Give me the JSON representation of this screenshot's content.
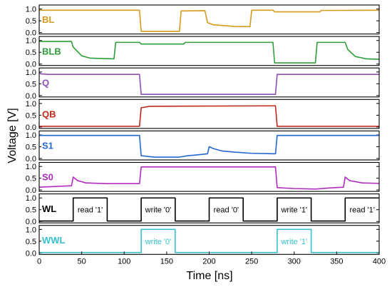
{
  "chart_data": {
    "type": "line",
    "xlabel": "Time [ns]",
    "ylabel": "Voltage [V]",
    "xlim": [
      0,
      400
    ],
    "ylim": [
      0,
      1.05
    ],
    "x_ticks": [
      "0",
      "50",
      "100",
      "150",
      "200",
      "250",
      "300",
      "350",
      "400"
    ],
    "y_ticks": [
      "0.0",
      "0.5",
      "1.0"
    ],
    "series": [
      {
        "name": "BL",
        "color": "#d89a1a",
        "points": [
          [
            0,
            0.95
          ],
          [
            118,
            0.95
          ],
          [
            120,
            0.05
          ],
          [
            165,
            0.05
          ],
          [
            167,
            0.92
          ],
          [
            195,
            0.93
          ],
          [
            198,
            0.42
          ],
          [
            205,
            0.33
          ],
          [
            230,
            0.26
          ],
          [
            248,
            0.25
          ],
          [
            250,
            0.95
          ],
          [
            275,
            0.95
          ],
          [
            277,
            0.88
          ],
          [
            330,
            0.88
          ],
          [
            332,
            0.94
          ],
          [
            400,
            0.95
          ]
        ]
      },
      {
        "name": "BLB",
        "color": "#2f9e3a",
        "points": [
          [
            0,
            0.96
          ],
          [
            38,
            0.96
          ],
          [
            40,
            0.72
          ],
          [
            50,
            0.35
          ],
          [
            60,
            0.25
          ],
          [
            88,
            0.22
          ],
          [
            90,
            0.92
          ],
          [
            118,
            0.92
          ],
          [
            120,
            0.85
          ],
          [
            170,
            0.85
          ],
          [
            172,
            0.92
          ],
          [
            275,
            0.92
          ],
          [
            277,
            0.05
          ],
          [
            325,
            0.05
          ],
          [
            327,
            0.92
          ],
          [
            360,
            0.92
          ],
          [
            363,
            0.62
          ],
          [
            372,
            0.32
          ],
          [
            385,
            0.22
          ],
          [
            400,
            0.2
          ]
        ]
      },
      {
        "name": "Q",
        "color": "#8e4fb0",
        "points": [
          [
            0,
            0.98
          ],
          [
            2,
            0.92
          ],
          [
            10,
            0.9
          ],
          [
            118,
            0.9
          ],
          [
            120,
            0.05
          ],
          [
            278,
            0.05
          ],
          [
            280,
            0.9
          ],
          [
            400,
            0.9
          ]
        ]
      },
      {
        "name": "QB",
        "color": "#c0281a",
        "points": [
          [
            0,
            0.03
          ],
          [
            118,
            0.03
          ],
          [
            120,
            0.82
          ],
          [
            130,
            0.88
          ],
          [
            278,
            0.9
          ],
          [
            280,
            0.03
          ],
          [
            400,
            0.03
          ]
        ]
      },
      {
        "name": "S1",
        "color": "#2466d4",
        "points": [
          [
            0,
            0.98
          ],
          [
            118,
            0.98
          ],
          [
            120,
            0.12
          ],
          [
            135,
            0.06
          ],
          [
            150,
            0.06
          ],
          [
            165,
            0.06
          ],
          [
            175,
            0.12
          ],
          [
            185,
            0.15
          ],
          [
            198,
            0.2
          ],
          [
            200,
            0.5
          ],
          [
            205,
            0.42
          ],
          [
            215,
            0.32
          ],
          [
            230,
            0.27
          ],
          [
            250,
            0.22
          ],
          [
            278,
            0.2
          ],
          [
            280,
            0.98
          ],
          [
            400,
            0.98
          ]
        ]
      },
      {
        "name": "S0",
        "color": "#b02cc0",
        "points": [
          [
            0,
            0.12
          ],
          [
            38,
            0.18
          ],
          [
            40,
            0.55
          ],
          [
            45,
            0.4
          ],
          [
            55,
            0.3
          ],
          [
            80,
            0.27
          ],
          [
            118,
            0.27
          ],
          [
            120,
            0.98
          ],
          [
            278,
            0.98
          ],
          [
            280,
            0.1
          ],
          [
            300,
            0.06
          ],
          [
            325,
            0.04
          ],
          [
            340,
            0.08
          ],
          [
            358,
            0.12
          ],
          [
            360,
            0.55
          ],
          [
            365,
            0.4
          ],
          [
            380,
            0.3
          ],
          [
            400,
            0.28
          ]
        ]
      },
      {
        "name": "WL",
        "color": "#000000",
        "points": [
          [
            0,
            0.02
          ],
          [
            40,
            0.02
          ],
          [
            40,
            1.0
          ],
          [
            80,
            1.0
          ],
          [
            80,
            0.02
          ],
          [
            120,
            0.02
          ],
          [
            120,
            1.0
          ],
          [
            160,
            1.0
          ],
          [
            160,
            0.02
          ],
          [
            200,
            0.02
          ],
          [
            200,
            1.0
          ],
          [
            240,
            1.0
          ],
          [
            240,
            0.02
          ],
          [
            280,
            0.02
          ],
          [
            280,
            1.0
          ],
          [
            320,
            1.0
          ],
          [
            320,
            0.02
          ],
          [
            360,
            0.02
          ],
          [
            360,
            1.0
          ],
          [
            400,
            1.0
          ]
        ]
      },
      {
        "name": "WWL",
        "color": "#35c0cf",
        "points": [
          [
            0,
            0.02
          ],
          [
            120,
            0.02
          ],
          [
            120,
            1.0
          ],
          [
            160,
            1.0
          ],
          [
            160,
            0.02
          ],
          [
            280,
            0.02
          ],
          [
            280,
            1.0
          ],
          [
            320,
            1.0
          ],
          [
            320,
            0.02
          ],
          [
            400,
            0.02
          ]
        ]
      }
    ],
    "annotations": [
      {
        "panel": "WL",
        "text": "read '1'",
        "x": 60,
        "color": "#000000"
      },
      {
        "panel": "WL",
        "text": "write '0'",
        "x": 140,
        "color": "#000000"
      },
      {
        "panel": "WL",
        "text": "read '0'",
        "x": 220,
        "color": "#000000"
      },
      {
        "panel": "WL",
        "text": "write '1'",
        "x": 300,
        "color": "#000000"
      },
      {
        "panel": "WL",
        "text": "read '1'",
        "x": 380,
        "color": "#000000"
      },
      {
        "panel": "WWL",
        "text": "write '0'",
        "x": 140,
        "color": "#35c0cf"
      },
      {
        "panel": "WWL",
        "text": "write '1'",
        "x": 300,
        "color": "#35c0cf"
      }
    ]
  }
}
